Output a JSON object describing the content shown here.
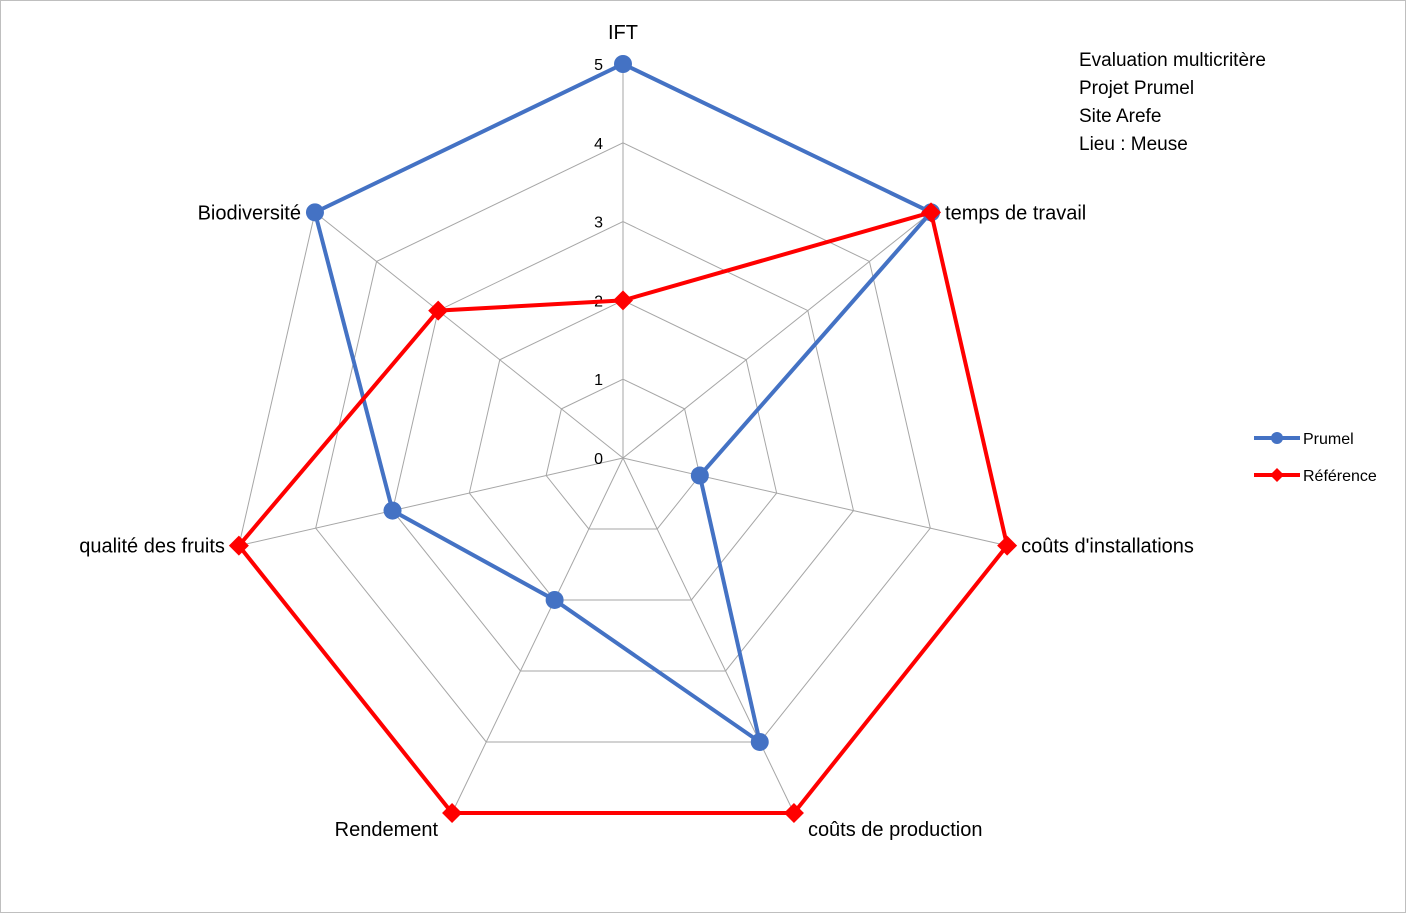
{
  "chart_data": {
    "type": "radar",
    "axes": [
      "IFT",
      "temps de travail",
      "coûts d'installations",
      "coûts de production",
      "Rendement",
      "qualité des fruits",
      "Biodiversité"
    ],
    "rlim": [
      0,
      5
    ],
    "ticks": [
      "0",
      "1",
      "2",
      "3",
      "4",
      "5"
    ],
    "grid": true,
    "legend_position": "right",
    "series": [
      {
        "name": "Prumel",
        "color": "#4472c4",
        "marker": "circle",
        "values": [
          5,
          5,
          1,
          4,
          2,
          3,
          5
        ]
      },
      {
        "name": "Référence",
        "color": "#ff0000",
        "marker": "diamond",
        "values": [
          2,
          5,
          5,
          5,
          5,
          5,
          3
        ]
      }
    ],
    "annotation_lines": [
      "Evaluation multicritère",
      "Projet Prumel",
      "Site Arefe",
      "Lieu : Meuse"
    ]
  }
}
